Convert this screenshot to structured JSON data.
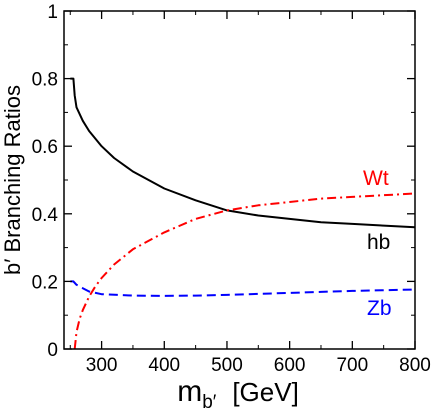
{
  "chart_data": {
    "type": "line",
    "title": "",
    "xlabel": {
      "base": "m",
      "subscript": "b′",
      "unit": "[GeV]"
    },
    "ylabel": "b′ Branching Ratios",
    "xlim": [
      240,
      800
    ],
    "ylim": [
      0,
      1
    ],
    "x_ticks": [
      300,
      400,
      500,
      600,
      700,
      800
    ],
    "y_ticks": [
      0,
      0.2,
      0.4,
      0.6,
      0.8,
      1
    ],
    "y_tick_labels": [
      "0",
      "0.2",
      "0.4",
      "0.6",
      "0.8",
      "1"
    ],
    "grid": false,
    "legend": "inline labels",
    "series": [
      {
        "name": "hb",
        "color": "#000000",
        "style": "solid",
        "x": [
          250,
          255,
          257,
          260,
          270,
          280,
          300,
          320,
          350,
          400,
          450,
          500,
          550,
          600,
          650,
          700,
          750,
          800
        ],
        "values": [
          0.8,
          0.8,
          0.75,
          0.715,
          0.675,
          0.645,
          0.6,
          0.565,
          0.525,
          0.475,
          0.44,
          0.41,
          0.395,
          0.385,
          0.375,
          0.37,
          0.365,
          0.36
        ]
      },
      {
        "name": "Wt",
        "color": "#ff0000",
        "style": "dashdot",
        "x": [
          257,
          260,
          265,
          270,
          280,
          290,
          300,
          320,
          350,
          400,
          450,
          500,
          550,
          600,
          650,
          700,
          750,
          800
        ],
        "values": [
          0.0,
          0.05,
          0.09,
          0.115,
          0.155,
          0.185,
          0.21,
          0.25,
          0.295,
          0.345,
          0.385,
          0.41,
          0.425,
          0.435,
          0.445,
          0.45,
          0.455,
          0.46
        ]
      },
      {
        "name": "Zb",
        "color": "#0000ff",
        "style": "dashed",
        "x": [
          250,
          255,
          260,
          270,
          280,
          300,
          350,
          400,
          450,
          500,
          550,
          600,
          650,
          700,
          750,
          800
        ],
        "values": [
          0.2,
          0.2,
          0.19,
          0.18,
          0.17,
          0.162,
          0.158,
          0.157,
          0.158,
          0.16,
          0.163,
          0.166,
          0.169,
          0.172,
          0.174,
          0.176
        ]
      }
    ]
  }
}
